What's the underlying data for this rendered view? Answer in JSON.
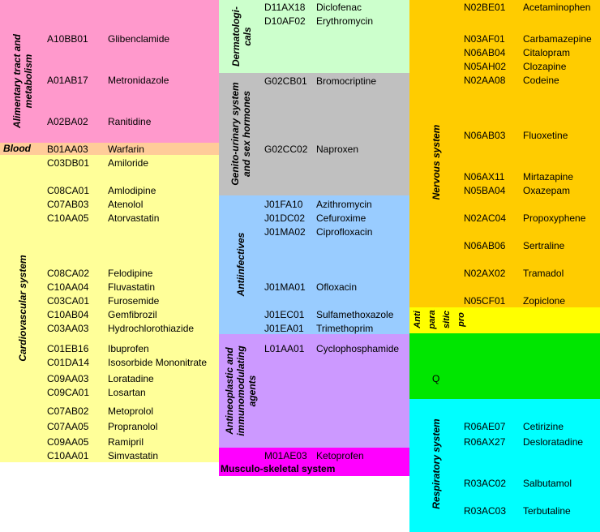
{
  "groups": [
    {
      "id": "alimentary",
      "label": "Alimentary tract and\nmetabolism",
      "color": "#FF99CC"
    },
    {
      "id": "blood",
      "label": "Blood",
      "color": "#FFCC99"
    },
    {
      "id": "cardiovascular",
      "label": "Cardiovascular system",
      "color": "#FFFF99"
    },
    {
      "id": "dermatologicals",
      "label": "Dermatologi-\ncals",
      "color": "#CCFFCC"
    },
    {
      "id": "genito",
      "label": "Genito-urinary system\nand sex hormones",
      "color": "#C0C0C0"
    },
    {
      "id": "antiinfectives",
      "label": "Antiinfectives",
      "color": "#99CCFF"
    },
    {
      "id": "antineoplastic",
      "label": "Antineoplastic and\nimmunomodulating\nagents",
      "color": "#CC99FF"
    },
    {
      "id": "musculo",
      "label": "Musculo-skeletal system",
      "color": "#FF00FF"
    },
    {
      "id": "nervous",
      "label": "Nervous system",
      "color": "#FFCC00"
    },
    {
      "id": "antiparasitic",
      "label": "Anti\npara\nsitic\npro",
      "color": "#FFFF00"
    },
    {
      "id": "q",
      "label": "Q",
      "color": "#00E600"
    },
    {
      "id": "respiratory",
      "label": "Respiratory system",
      "color": "#00FFFF"
    }
  ],
  "drugs": [
    {
      "code": "A10BB01",
      "name": "Glibenclamide"
    },
    {
      "code": "A01AB17",
      "name": "Metronidazole"
    },
    {
      "code": "A02BA02",
      "name": "Ranitidine"
    },
    {
      "code": "B01AA03",
      "name": "Warfarin"
    },
    {
      "code": "C03DB01",
      "name": "Amiloride"
    },
    {
      "code": "C08CA01",
      "name": "Amlodipine"
    },
    {
      "code": "C07AB03",
      "name": "Atenolol"
    },
    {
      "code": "C10AA05",
      "name": "Atorvastatin"
    },
    {
      "code": "C08CA02",
      "name": "Felodipine"
    },
    {
      "code": "C10AA04",
      "name": "Fluvastatin"
    },
    {
      "code": "C03CA01",
      "name": "Furosemide"
    },
    {
      "code": "C10AB04",
      "name": "Gemfibrozil"
    },
    {
      "code": "C03AA03",
      "name": "Hydrochlorothiazide"
    },
    {
      "code": "C01EB16",
      "name": "Ibuprofen"
    },
    {
      "code": "C01DA14",
      "name": "Isosorbide Mononitrate"
    },
    {
      "code": "C09AA03",
      "name": "Loratadine"
    },
    {
      "code": "C09CA01",
      "name": "Losartan"
    },
    {
      "code": "C07AB02",
      "name": "Metoprolol"
    },
    {
      "code": "C07AA05",
      "name": "Propranolol"
    },
    {
      "code": "C09AA05",
      "name": "Ramipril"
    },
    {
      "code": "C10AA01",
      "name": "Simvastatin"
    },
    {
      "code": "D11AX18",
      "name": "Diclofenac"
    },
    {
      "code": "D10AF02",
      "name": "Erythromycin"
    },
    {
      "code": "G02CB01",
      "name": "Bromocriptine"
    },
    {
      "code": "G02CC02",
      "name": "Naproxen"
    },
    {
      "code": "J01FA10",
      "name": "Azithromycin"
    },
    {
      "code": "J01DC02",
      "name": "Cefuroxime"
    },
    {
      "code": "J01MA02",
      "name": "Ciprofloxacin"
    },
    {
      "code": "J01MA01",
      "name": "Ofloxacin"
    },
    {
      "code": "J01EC01",
      "name": "Sulfamethoxazole"
    },
    {
      "code": "J01EA01",
      "name": "Trimethoprim"
    },
    {
      "code": "L01AA01",
      "name": "Cyclophosphamide"
    },
    {
      "code": "M01AE03",
      "name": "Ketoprofen"
    },
    {
      "code": "N02BE01",
      "name": "Acetaminophen"
    },
    {
      "code": "N03AF01",
      "name": "Carbamazepine"
    },
    {
      "code": "N06AB04",
      "name": "Citalopram"
    },
    {
      "code": "N05AH02",
      "name": "Clozapine"
    },
    {
      "code": "N02AA08",
      "name": "Codeine"
    },
    {
      "code": "N06AB03",
      "name": "Fluoxetine"
    },
    {
      "code": "N06AX11",
      "name": "Mirtazapine"
    },
    {
      "code": "N05BA04",
      "name": "Oxazepam"
    },
    {
      "code": "N02AC04",
      "name": "Propoxyphene"
    },
    {
      "code": "N06AB06",
      "name": "Sertraline"
    },
    {
      "code": "N02AX02",
      "name": "Tramadol"
    },
    {
      "code": "N05CF01",
      "name": "Zopiclone"
    },
    {
      "code": "R06AE07",
      "name": "Cetirizine"
    },
    {
      "code": "R06AX27",
      "name": "Desloratadine"
    },
    {
      "code": "R03AC02",
      "name": "Salbutamol"
    },
    {
      "code": "R03AC03",
      "name": "Terbutaline"
    }
  ]
}
